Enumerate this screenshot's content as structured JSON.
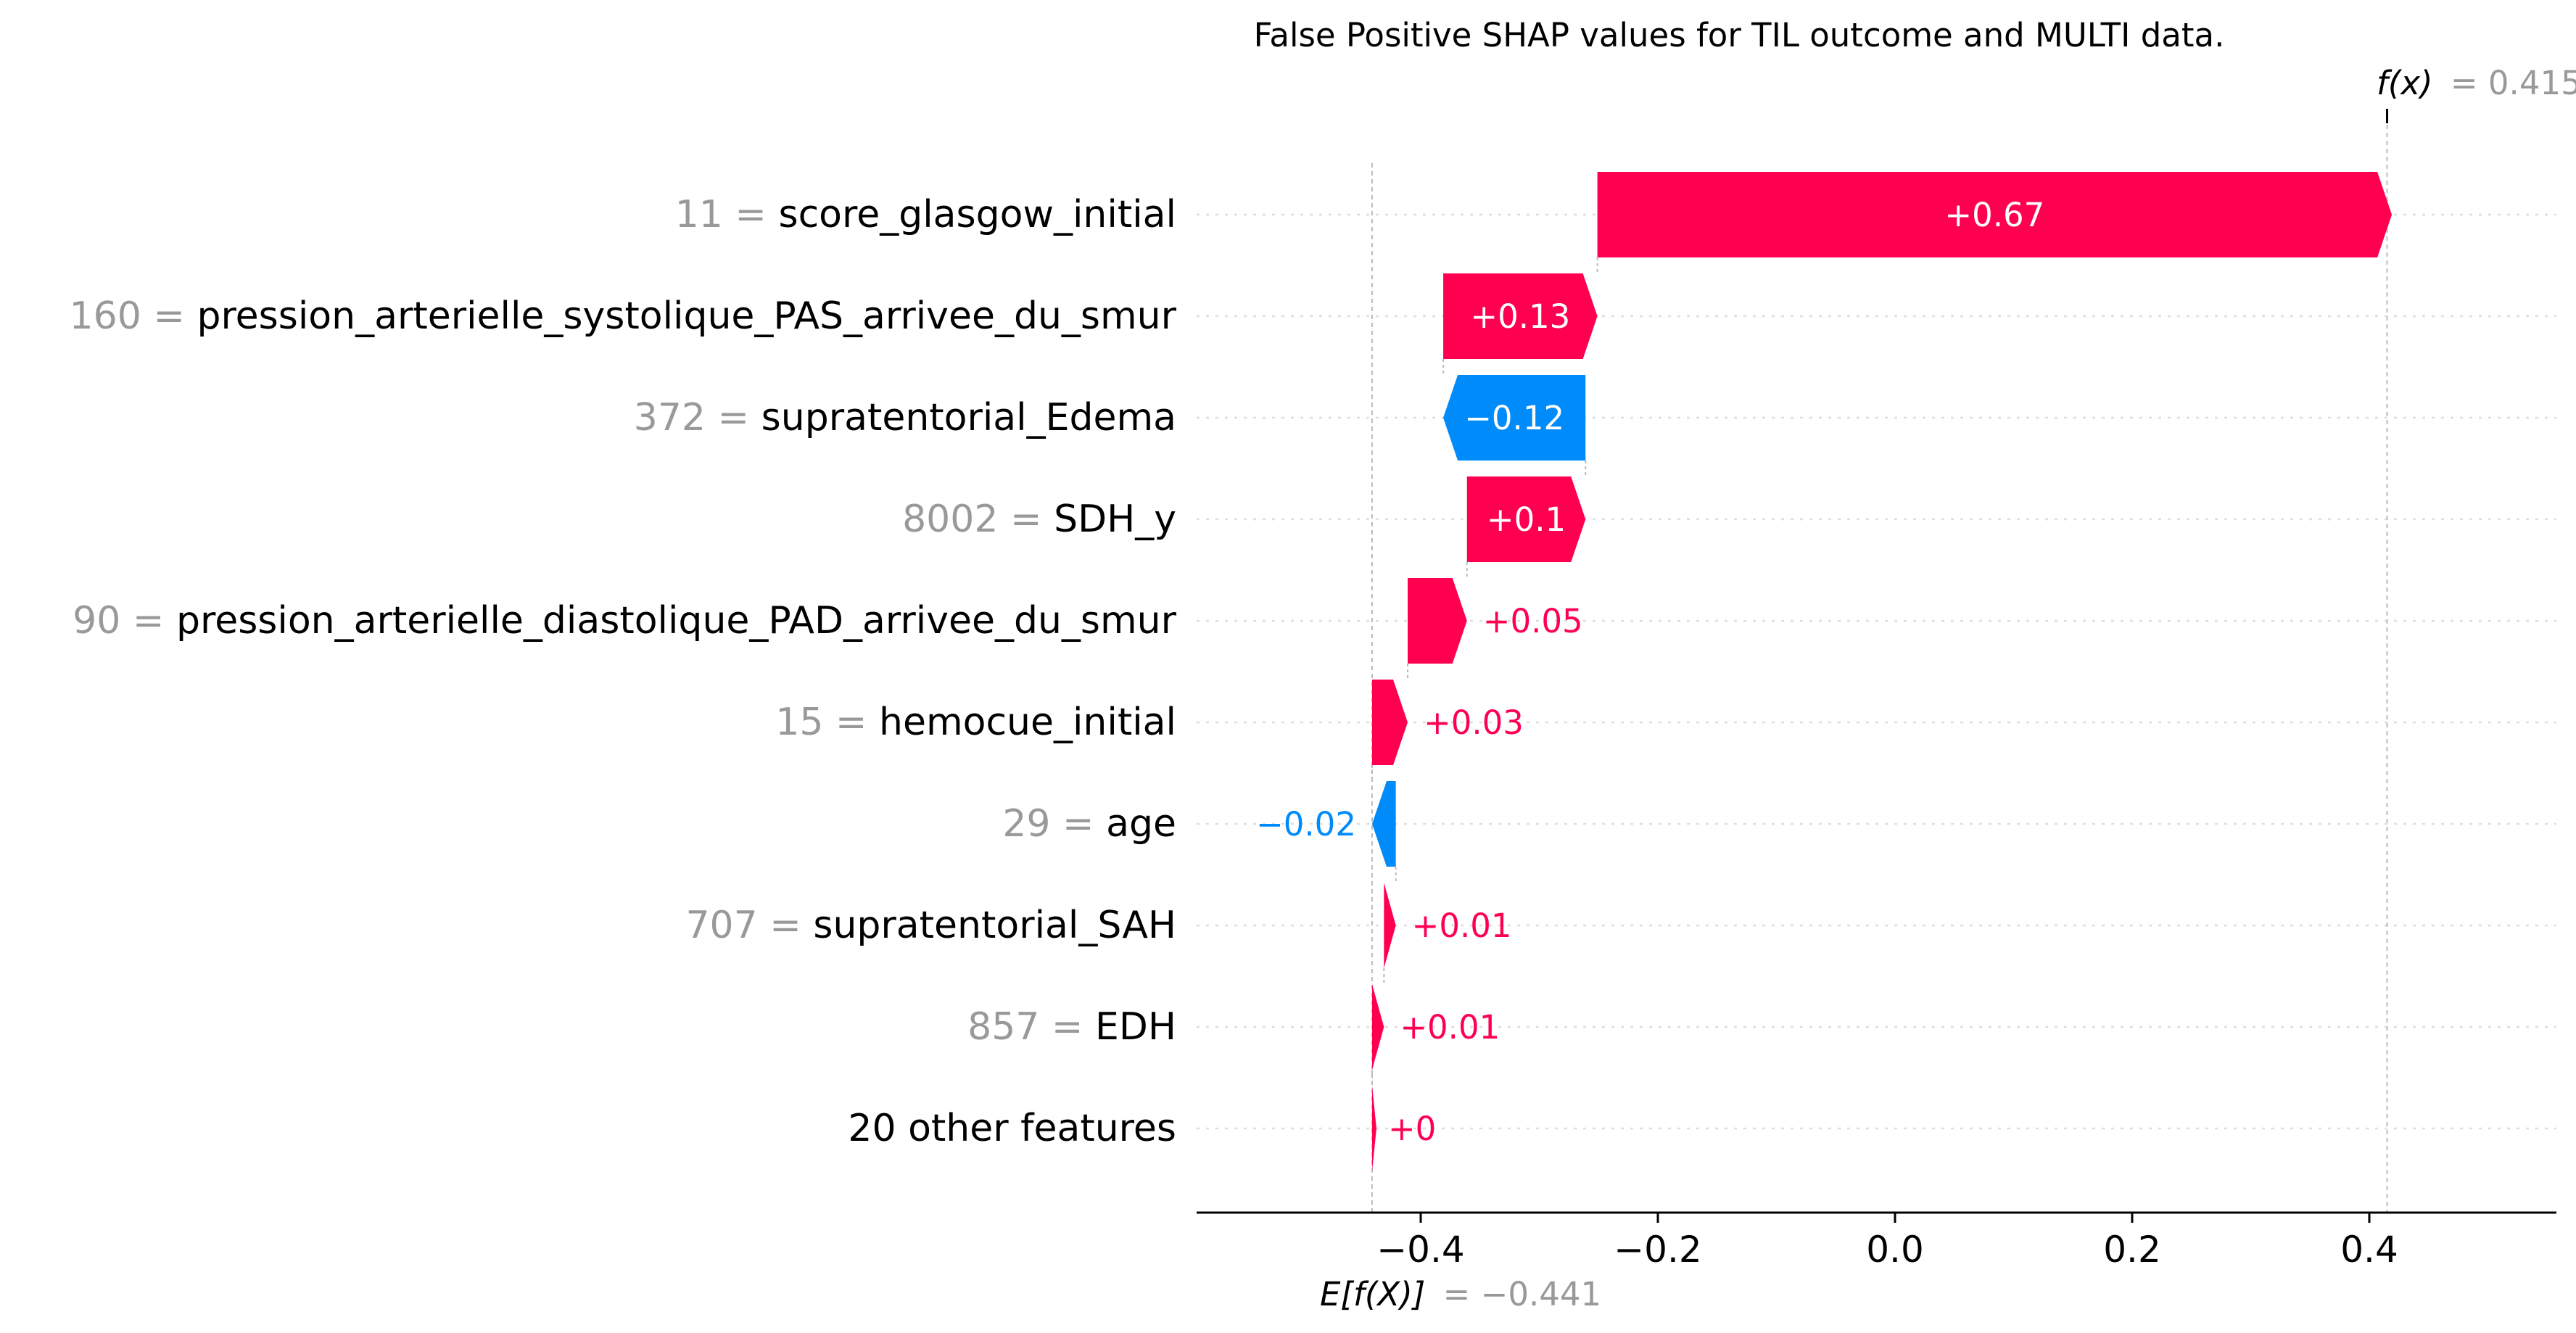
{
  "chart_data": {
    "type": "waterfall",
    "title": "False Positive SHAP values for TIL outcome and MULTI data.",
    "base_value": -0.441,
    "base_value_label": "= −0.441",
    "fx_value": 0.415,
    "fx_label": "= 0.415",
    "fx_italic": "f(x)",
    "ex_italic": "E[f(X)]",
    "xlim": [
      -0.57,
      0.55
    ],
    "xticks": [
      -0.4,
      -0.2,
      0.0,
      0.2,
      0.4
    ],
    "xtick_labels": [
      "−0.4",
      "−0.2",
      "0.0",
      "0.2",
      "0.4"
    ],
    "grid": "horizontal dotted",
    "features": [
      {
        "value": "11",
        "name": "score_glasgow_initial",
        "shap": 0.67,
        "label": "+0.67"
      },
      {
        "value": "160",
        "name": "pression_arterielle_systolique_PAS_arrivee_du_smur",
        "shap": 0.13,
        "label": "+0.13"
      },
      {
        "value": "372",
        "name": "supratentorial_Edema",
        "shap": -0.12,
        "label": "−0.12"
      },
      {
        "value": "8002",
        "name": "SDH_y",
        "shap": 0.1,
        "label": "+0.1"
      },
      {
        "value": "90",
        "name": "pression_arterielle_diastolique_PAD_arrivee_du_smur",
        "shap": 0.05,
        "label": "+0.05"
      },
      {
        "value": "15",
        "name": "hemocue_initial",
        "shap": 0.03,
        "label": "+0.03"
      },
      {
        "value": "29",
        "name": "age",
        "shap": -0.02,
        "label": "−0.02"
      },
      {
        "value": "707",
        "name": "supratentorial_SAH",
        "shap": 0.01,
        "label": "+0.01"
      },
      {
        "value": "857",
        "name": "EDH",
        "shap": 0.01,
        "label": "+0.01"
      },
      {
        "value": "",
        "name": "20 other features",
        "shap": 0.0,
        "label": "+0"
      }
    ],
    "colors": {
      "positive": "#ff0051",
      "negative": "#008bfb",
      "feature_value": "#999999",
      "text": "#000000",
      "grid": "#dddddd"
    }
  }
}
